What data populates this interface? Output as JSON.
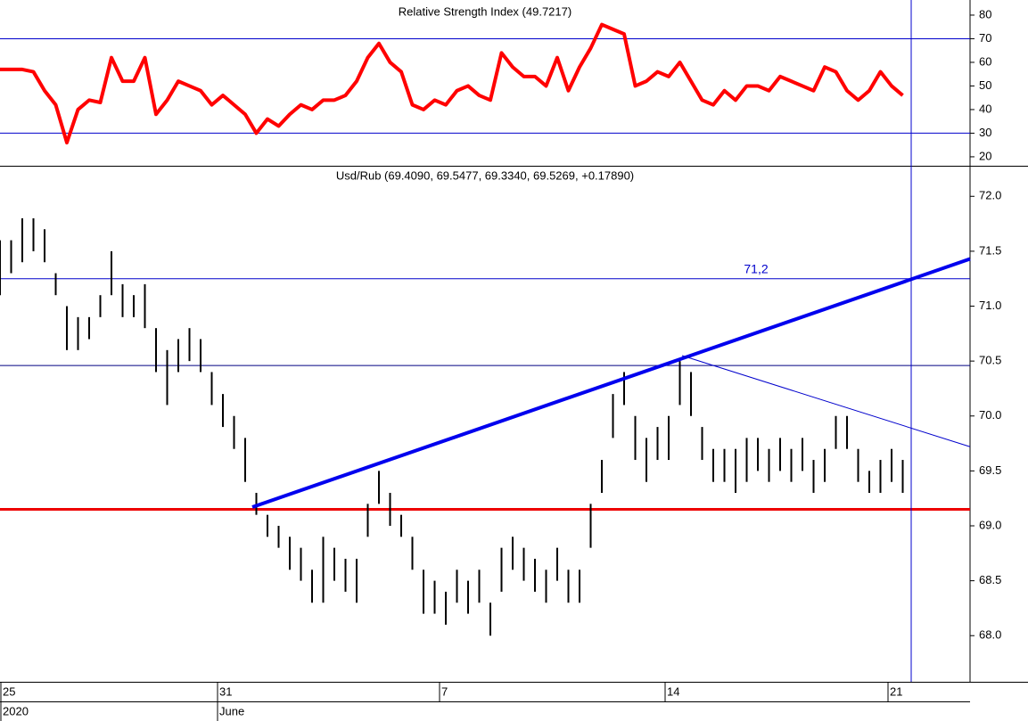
{
  "chart_data": [
    {
      "type": "line",
      "title": "Relative Strength Index (49.7217)",
      "color": "#ff0000",
      "x": [
        0,
        0.25,
        0.5,
        0.75,
        1,
        1.25,
        1.5,
        1.75,
        2,
        2.25,
        2.5,
        2.75,
        3,
        3.25,
        3.5,
        3.75,
        4,
        4.25,
        4.5,
        4.75,
        5,
        5.25,
        5.5,
        5.75,
        6,
        6.25,
        6.5,
        6.75,
        7,
        7.25,
        7.5,
        7.75,
        8,
        8.25,
        8.5,
        8.75,
        9,
        9.25,
        9.5,
        9.75,
        10,
        10.25,
        10.5,
        10.75,
        11,
        11.25,
        11.5,
        11.75,
        12,
        12.25,
        12.5,
        12.75,
        13,
        13.25,
        13.5,
        13.75,
        14,
        14.25,
        14.5,
        14.75,
        15,
        15.25,
        15.5,
        15.75,
        16,
        16.25,
        16.5,
        16.75,
        17,
        17.25,
        17.5,
        17.75,
        18,
        18.25,
        18.5,
        18.75,
        19,
        19.25,
        19.5,
        19.75,
        20,
        20.25
      ],
      "values": [
        57,
        57,
        57,
        56,
        48,
        42,
        26,
        40,
        44,
        43,
        62,
        52,
        52,
        62,
        38,
        44,
        52,
        50,
        48,
        42,
        46,
        42,
        38,
        30,
        36,
        33,
        38,
        42,
        40,
        44,
        44,
        46,
        52,
        62,
        68,
        60,
        56,
        42,
        40,
        44,
        42,
        48,
        50,
        46,
        44,
        64,
        58,
        54,
        54,
        50,
        62,
        48,
        58,
        66,
        76,
        74,
        72,
        50,
        52,
        56,
        54,
        60,
        52,
        44,
        42,
        48,
        44,
        50,
        50,
        48,
        54,
        52,
        50,
        48,
        58,
        56,
        48,
        44,
        48,
        56,
        50,
        46
      ],
      "xlim": [
        0,
        21.76
      ],
      "ylim": [
        16.2,
        86.4
      ],
      "yticks": [
        20,
        30,
        40,
        50,
        60,
        70,
        80
      ],
      "hlines": [
        {
          "value": 70,
          "color": "#0000cc",
          "width": 1
        },
        {
          "value": 30,
          "color": "#0000cc",
          "width": 1
        }
      ]
    },
    {
      "type": "ohlc",
      "title": "Usd/Rub (69.4090, 69.5477, 69.3340, 69.5269, +0.17890)",
      "color": "#000000",
      "x": [
        0,
        0.25,
        0.5,
        0.75,
        1,
        1.25,
        1.5,
        1.75,
        2,
        2.25,
        2.5,
        2.75,
        3,
        3.25,
        3.5,
        3.75,
        4,
        4.25,
        4.5,
        4.75,
        5,
        5.25,
        5.5,
        5.75,
        6,
        6.25,
        6.5,
        6.75,
        7,
        7.25,
        7.5,
        7.75,
        8,
        8.25,
        8.5,
        8.75,
        9,
        9.25,
        9.5,
        9.75,
        10,
        10.25,
        10.5,
        10.75,
        11,
        11.25,
        11.5,
        11.75,
        12,
        12.25,
        12.5,
        12.75,
        13,
        13.25,
        13.5,
        13.75,
        14,
        14.25,
        14.5,
        14.75,
        15,
        15.25,
        15.5,
        15.75,
        16,
        16.25,
        16.5,
        16.75,
        17,
        17.25,
        17.5,
        17.75,
        18,
        18.25,
        18.5,
        18.75,
        19,
        19.25,
        19.5,
        19.75,
        20,
        20.25
      ],
      "high": [
        71.6,
        71.6,
        71.8,
        71.8,
        71.7,
        71.3,
        71.0,
        70.9,
        70.9,
        71.1,
        71.5,
        71.2,
        71.1,
        71.2,
        70.8,
        70.6,
        70.7,
        70.8,
        70.7,
        70.4,
        70.2,
        70.0,
        69.8,
        69.3,
        69.1,
        69.0,
        68.9,
        68.8,
        68.6,
        68.9,
        68.8,
        68.7,
        68.7,
        69.2,
        69.5,
        69.3,
        69.1,
        68.9,
        68.6,
        68.5,
        68.4,
        68.6,
        68.5,
        68.6,
        68.3,
        68.8,
        68.9,
        68.8,
        68.7,
        68.6,
        68.8,
        68.6,
        68.6,
        69.2,
        69.6,
        70.2,
        70.4,
        70.0,
        69.8,
        69.9,
        70.0,
        70.5,
        70.4,
        69.9,
        69.7,
        69.7,
        69.7,
        69.8,
        69.8,
        69.7,
        69.8,
        69.7,
        69.8,
        69.6,
        69.7,
        70.0,
        70.0,
        69.7,
        69.5,
        69.6,
        69.7,
        69.6
      ],
      "low": [
        71.1,
        71.3,
        71.4,
        71.5,
        71.4,
        71.1,
        70.6,
        70.6,
        70.7,
        70.9,
        71.1,
        70.9,
        70.9,
        70.8,
        70.4,
        70.1,
        70.4,
        70.5,
        70.4,
        70.1,
        69.9,
        69.7,
        69.4,
        69.1,
        68.9,
        68.8,
        68.6,
        68.5,
        68.3,
        68.3,
        68.5,
        68.4,
        68.3,
        68.9,
        69.2,
        69.0,
        68.9,
        68.6,
        68.2,
        68.2,
        68.1,
        68.3,
        68.2,
        68.3,
        68.0,
        68.4,
        68.6,
        68.5,
        68.4,
        68.3,
        68.5,
        68.3,
        68.3,
        68.8,
        69.3,
        69.8,
        70.1,
        69.6,
        69.4,
        69.6,
        69.6,
        70.1,
        70.0,
        69.6,
        69.4,
        69.4,
        69.3,
        69.4,
        69.5,
        69.4,
        69.5,
        69.4,
        69.5,
        69.3,
        69.4,
        69.7,
        69.7,
        69.4,
        69.3,
        69.3,
        69.4,
        69.3
      ],
      "xlim": [
        0,
        21.76
      ],
      "ylim": [
        67.58,
        72.27
      ],
      "yticks": [
        {
          "value": 68,
          "label": "68.0"
        },
        68.5,
        {
          "value": 69,
          "label": "69.0"
        },
        69.5,
        {
          "value": 70,
          "label": "70.0"
        },
        70.5,
        {
          "value": 71,
          "label": "71.0"
        },
        71.5,
        {
          "value": 72,
          "label": "72.0"
        }
      ],
      "xticks": [
        {
          "value": 0,
          "label": "25"
        },
        {
          "value": 4.86,
          "label": "31"
        },
        {
          "value": 9.84,
          "label": "7"
        },
        {
          "value": 14.9,
          "label": "14"
        },
        {
          "value": 19.9,
          "label": "21"
        }
      ],
      "xticks_secondary": [
        {
          "value": 0,
          "label": "2020"
        },
        {
          "value": 4.86,
          "label": "June"
        }
      ],
      "hlines": [
        {
          "value": 69.15,
          "color": "#ee0000",
          "width": 3
        },
        {
          "value": 71.25,
          "color": "#0000cc",
          "width": 1,
          "label": "71,2"
        },
        {
          "value": 70.46,
          "color": "#000080",
          "width": 1
        }
      ],
      "trendlines": [
        {
          "x": [
            5.66,
            21.76
          ],
          "y": [
            69.17,
            71.43
          ],
          "color": "#0000ee",
          "width": 4
        },
        {
          "x": [
            15.3,
            21.76
          ],
          "y": [
            70.55,
            69.72
          ],
          "color": "#0000cc",
          "width": 1
        }
      ],
      "vline": {
        "value": 20.44,
        "color": "#0000cc"
      }
    }
  ]
}
